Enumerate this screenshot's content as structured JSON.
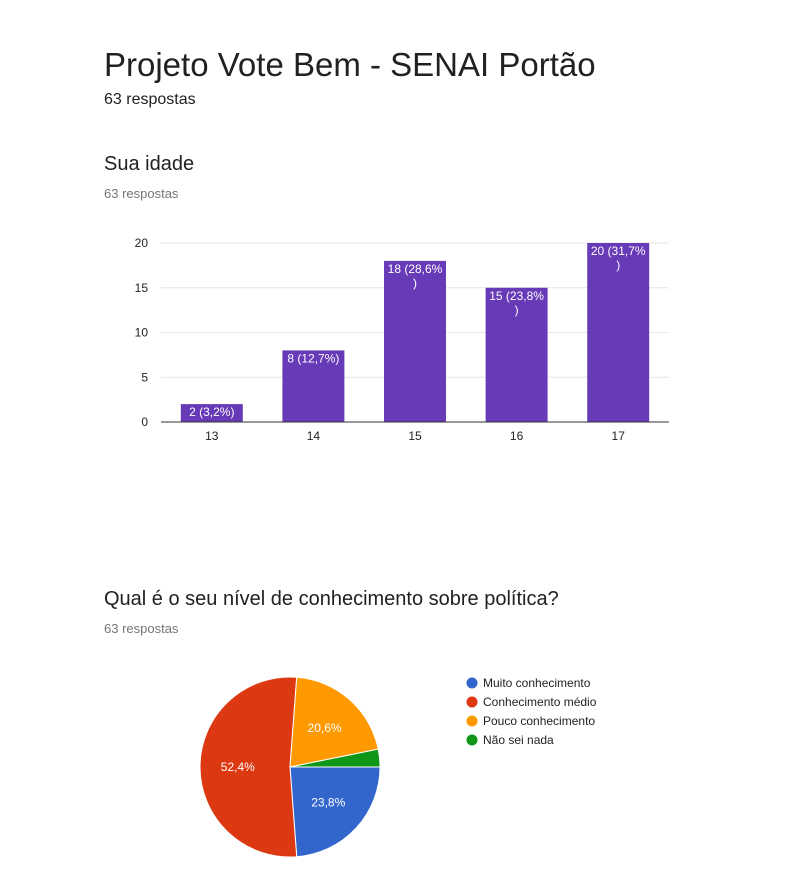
{
  "form": {
    "title": "Projeto Vote Bem - SENAI Portão",
    "responses": "63 respostas"
  },
  "questions": [
    {
      "title": "Sua idade",
      "responses": "63 respostas"
    },
    {
      "title": "Qual é o seu nível de conhecimento sobre política?",
      "responses": "63 respostas"
    }
  ],
  "chart_data": [
    {
      "type": "bar",
      "categories": [
        "13",
        "14",
        "15",
        "16",
        "17"
      ],
      "values": [
        2,
        8,
        18,
        15,
        20
      ],
      "labels": [
        "2 (3,2%)",
        "8 (12,7%)",
        "18 (28,6%)",
        "15 (23,8%)",
        "20 (31,7%)"
      ],
      "ylim": [
        0,
        20
      ],
      "yticks": [
        "0",
        "5",
        "10",
        "15",
        "20"
      ],
      "bar_color": "#673ab7",
      "grid": true
    },
    {
      "type": "pie",
      "categories": [
        "Muito conhecimento",
        "Conhecimento médio",
        "Pouco conhecimento",
        "Não sei nada"
      ],
      "values": [
        15,
        33,
        13,
        2
      ],
      "labels": [
        "23,8%",
        "52,4%",
        "20,6%",
        ""
      ],
      "colors": [
        "#3366cc",
        "#dc3912",
        "#ff9900",
        "#109618"
      ],
      "legend": "right"
    }
  ]
}
